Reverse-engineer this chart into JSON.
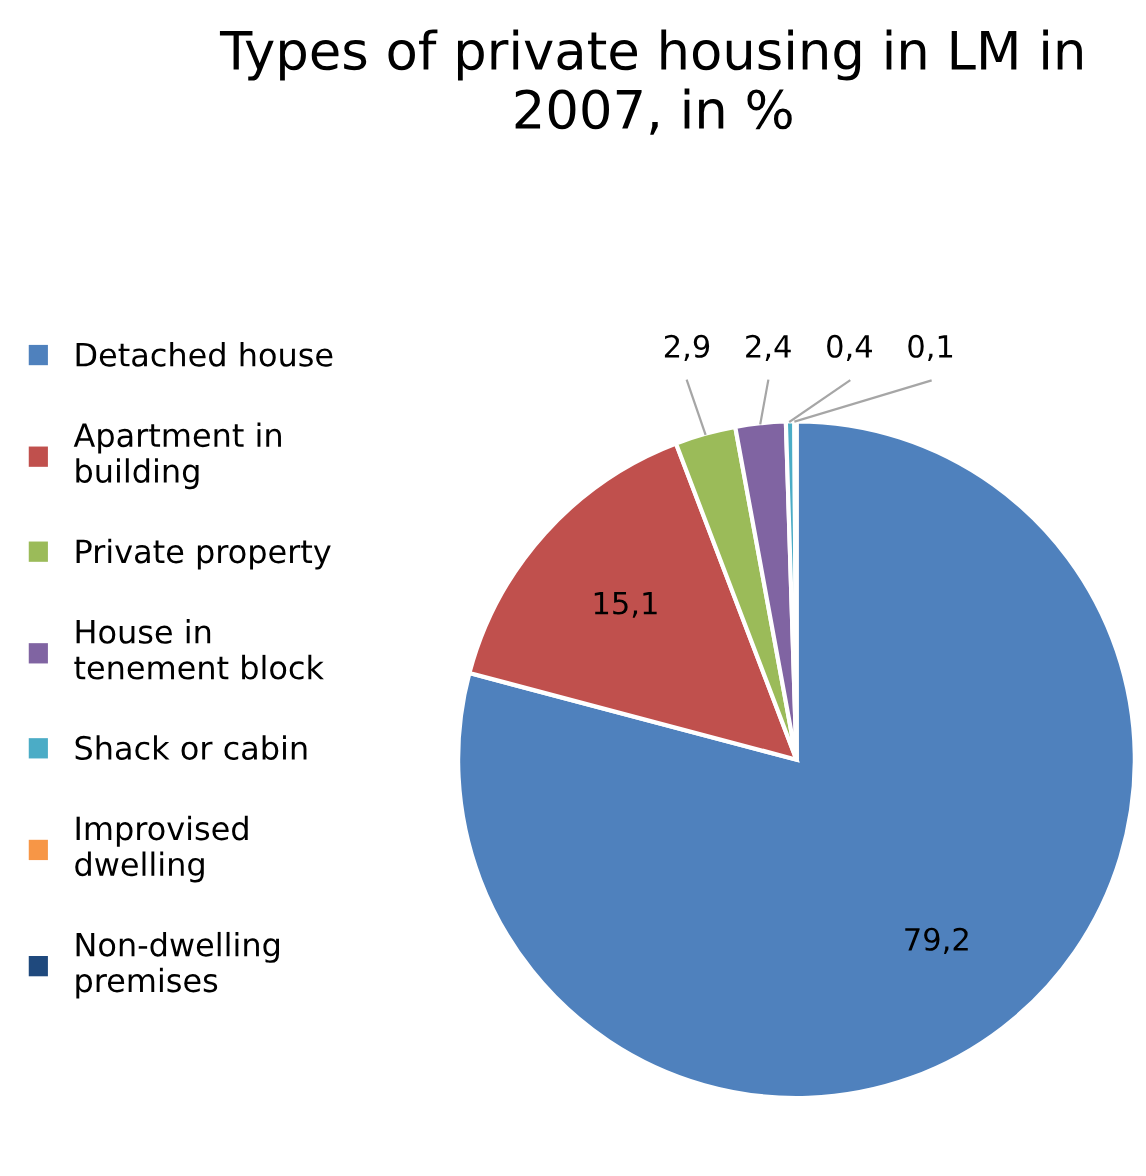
{
  "chart_data": {
    "type": "pie",
    "title": "Types of private housing in LM in 2007, in %",
    "categories": [
      "Detached house",
      "Apartment in building",
      "Private property",
      "House in tenement block",
      "Shack or cabin",
      "Improvised dwelling",
      "Non-dwelling premises"
    ],
    "values": [
      79.2,
      15.1,
      2.9,
      2.4,
      0.4,
      0.1,
      0
    ],
    "value_labels": [
      "79,2",
      "15,1",
      "2,9",
      "2,4",
      "0,4",
      "0,1",
      null
    ],
    "colors": [
      "#4f81bd",
      "#c0504d",
      "#9bbb59",
      "#8064a2",
      "#4bacc6",
      "#f79646",
      "#1f497d"
    ],
    "legend": "left"
  }
}
